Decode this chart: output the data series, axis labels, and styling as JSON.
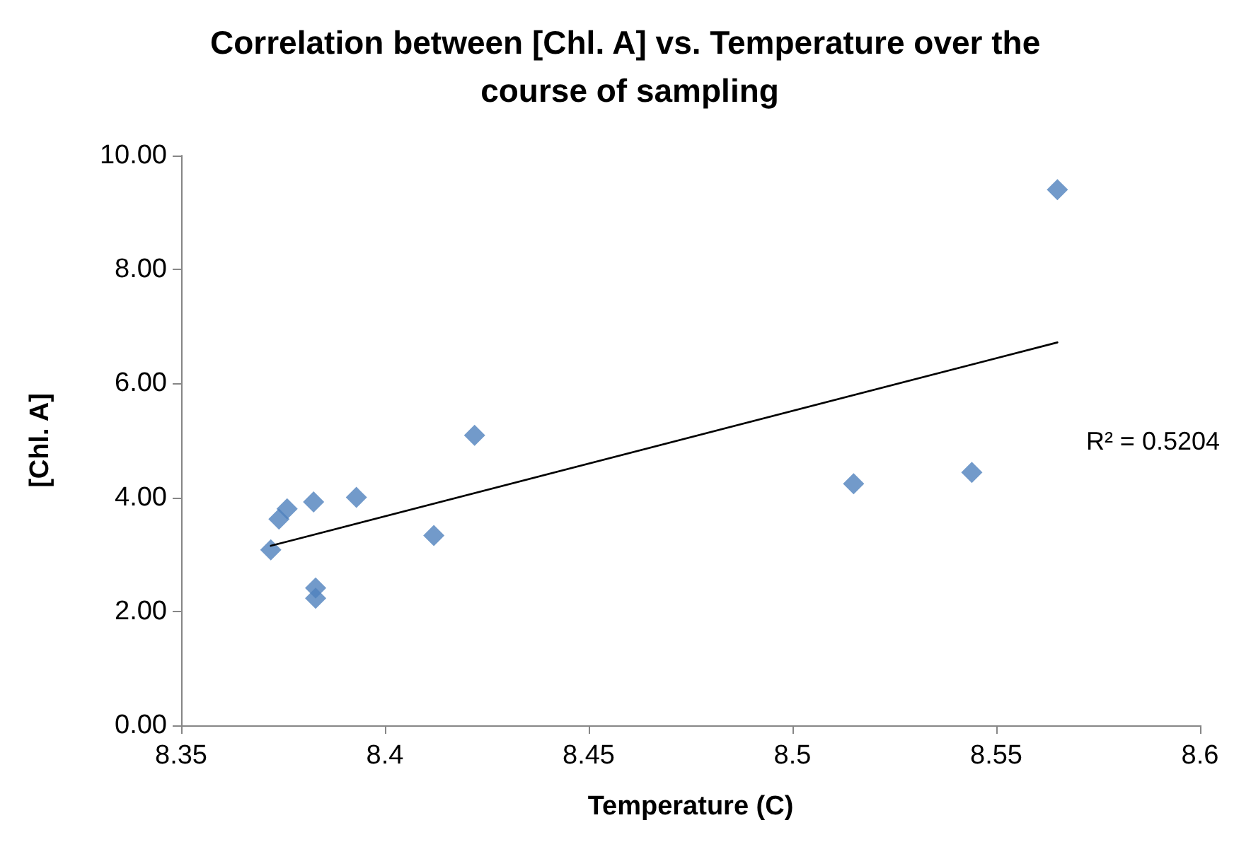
{
  "chart_data": {
    "type": "scatter",
    "title": "Correlation between [Chl. A] vs. Temperature over the course of sampling",
    "xlabel": "Temperature (C)",
    "ylabel": "[Chl. A]",
    "x": [
      8.372,
      8.374,
      8.376,
      8.3825,
      8.383,
      8.383,
      8.393,
      8.412,
      8.422,
      8.515,
      8.544,
      8.565
    ],
    "series": [
      {
        "color": "#4f81bd",
        "values": [
          3.08,
          3.62,
          3.8,
          3.92,
          2.41,
          2.23,
          4.0,
          3.33,
          5.09,
          4.24,
          4.44,
          9.4
        ]
      },
      {
        "type": "line",
        "color": "#000000",
        "x": [
          8.372,
          8.565
        ],
        "values": [
          3.15,
          6.72
        ],
        "marker": "none"
      }
    ],
    "marker": "diamond",
    "grid": false,
    "xlim": [
      8.35,
      8.6
    ],
    "xticks": [
      8.35,
      8.4,
      8.45,
      8.5,
      8.55,
      8.6
    ],
    "ylim": [
      0,
      10
    ],
    "yticks": [
      {
        "value": 0,
        "label": "0.00"
      },
      {
        "value": 2,
        "label": "2.00"
      },
      {
        "value": 4,
        "label": "4.00"
      },
      {
        "value": 6,
        "label": "6.00"
      },
      {
        "value": 8,
        "label": "8.00"
      },
      {
        "value": 10,
        "label": "10.00"
      }
    ],
    "annotations": [
      "R² = 0.5204"
    ]
  }
}
